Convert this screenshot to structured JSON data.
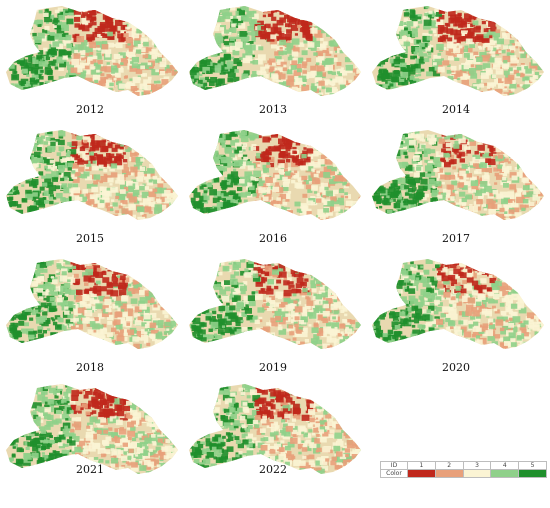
{
  "panels": [
    {
      "year": "2012",
      "red_intensity": 0.85
    },
    {
      "year": "2013",
      "red_intensity": 0.9
    },
    {
      "year": "2014",
      "red_intensity": 0.85
    },
    {
      "year": "2015",
      "red_intensity": 0.8
    },
    {
      "year": "2016",
      "red_intensity": 0.85
    },
    {
      "year": "2017",
      "red_intensity": 0.6
    },
    {
      "year": "2018",
      "red_intensity": 0.75
    },
    {
      "year": "2019",
      "red_intensity": 0.7
    },
    {
      "year": "2020",
      "red_intensity": 0.55
    },
    {
      "year": "2021",
      "red_intensity": 0.8
    },
    {
      "year": "2022",
      "red_intensity": 0.7
    }
  ],
  "legend": {
    "id_label": "ID",
    "color_label": "Color",
    "classes": [
      {
        "id": "1",
        "color": "#c0281c"
      },
      {
        "id": "2",
        "color": "#e8a07a"
      },
      {
        "id": "3",
        "color": "#fbf4d4"
      },
      {
        "id": "4",
        "color": "#8fd08a"
      },
      {
        "id": "5",
        "color": "#1f8f2c"
      }
    ]
  }
}
